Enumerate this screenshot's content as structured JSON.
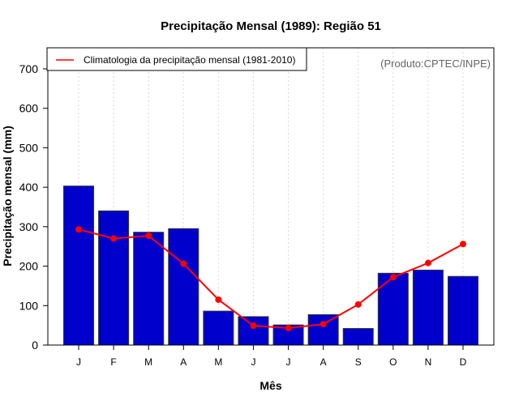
{
  "chart_data": {
    "type": "bar",
    "title": "Precipitação Mensal (1989): Região 51",
    "xlabel": "Mês",
    "ylabel": "Precipitação mensal (mm)",
    "categories": [
      "J",
      "F",
      "M",
      "A",
      "M",
      "J",
      "J",
      "A",
      "S",
      "O",
      "N",
      "D"
    ],
    "ylim": [
      0,
      700
    ],
    "yticks": [
      0,
      100,
      200,
      300,
      400,
      500,
      600,
      700
    ],
    "grid": "vertical-dotted",
    "series": [
      {
        "name": "Precipitação mensal 1989",
        "type": "bar",
        "color": "#0000cd",
        "values": [
          403,
          340,
          286,
          295,
          86,
          72,
          51,
          77,
          42,
          182,
          190,
          174
        ]
      },
      {
        "name": "Climatologia da precipitação mensal (1981-2010)",
        "type": "line",
        "color": "#ff0000",
        "values": [
          293,
          270,
          277,
          206,
          115,
          49,
          43,
          53,
          103,
          172,
          208,
          256
        ]
      }
    ],
    "legend": {
      "position": "top-left",
      "entries": [
        {
          "label": "Climatologia da precipitação mensal (1981-2010)",
          "color": "#ff0000"
        }
      ]
    },
    "annotations": [
      "(Produto:CPTEC/INPE)"
    ]
  }
}
